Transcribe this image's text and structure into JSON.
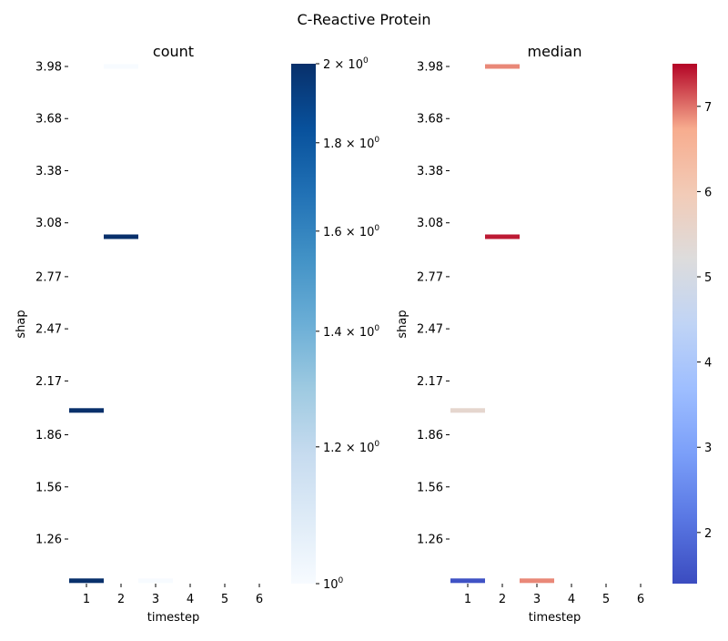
{
  "chart_data": {
    "title": "C-Reactive Protein",
    "charts": [
      {
        "type": "heatmap",
        "subtitle": "count",
        "xlabel": "timestep",
        "ylabel": "shap",
        "x_categories": [
          "1",
          "2",
          "3",
          "4",
          "5",
          "6"
        ],
        "y_tick_labels": [
          "3.98",
          "3.68",
          "3.38",
          "3.08",
          "2.77",
          "2.47",
          "2.17",
          "1.86",
          "1.56",
          "1.26"
        ],
        "colorbar": {
          "scale": "log",
          "range": [
            1,
            2
          ],
          "ticks": [
            {
              "value": 2,
              "base": "2 × 10",
              "exp": "0"
            },
            {
              "value": 1.8,
              "base": "1.8 × 10",
              "exp": "0"
            },
            {
              "value": 1.6,
              "base": "1.6 × 10",
              "exp": "0"
            },
            {
              "value": 1.4,
              "base": "1.4 × 10",
              "exp": "0"
            },
            {
              "value": 1.2,
              "base": "1.2 × 10",
              "exp": "0"
            },
            {
              "value": 1,
              "base": "10",
              "exp": "0"
            }
          ],
          "colormap": "Blues"
        },
        "cells": [
          {
            "timestep": 2,
            "shap": 3.98,
            "value": 1
          },
          {
            "timestep": 2,
            "shap": 3.0,
            "value": 2
          },
          {
            "timestep": 1,
            "shap": 2.0,
            "value": 2
          },
          {
            "timestep": 1,
            "shap": 1.02,
            "value": 2
          },
          {
            "timestep": 3,
            "shap": 1.02,
            "value": 1
          }
        ]
      },
      {
        "type": "heatmap",
        "subtitle": "median",
        "xlabel": "timestep",
        "ylabel": "shap",
        "x_categories": [
          "1",
          "2",
          "3",
          "4",
          "5",
          "6"
        ],
        "y_tick_labels": [
          "3.98",
          "3.68",
          "3.38",
          "3.08",
          "2.77",
          "2.47",
          "2.17",
          "1.86",
          "1.56",
          "1.26"
        ],
        "colorbar": {
          "scale": "linear",
          "range": [
            1.4,
            7.5
          ],
          "ticks": [
            {
              "value": 7,
              "label": "7"
            },
            {
              "value": 6,
              "label": "6"
            },
            {
              "value": 5,
              "label": "5"
            },
            {
              "value": 4,
              "label": "4"
            },
            {
              "value": 3,
              "label": "3"
            },
            {
              "value": 2,
              "label": "2"
            }
          ],
          "colormap": "coolwarm"
        },
        "cells": [
          {
            "timestep": 2,
            "shap": 3.98,
            "value": 6.9
          },
          {
            "timestep": 2,
            "shap": 3.0,
            "value": 7.4
          },
          {
            "timestep": 1,
            "shap": 2.0,
            "value": 5.5
          },
          {
            "timestep": 1,
            "shap": 1.02,
            "value": 1.5
          },
          {
            "timestep": 3,
            "shap": 1.02,
            "value": 6.9
          }
        ]
      }
    ]
  }
}
